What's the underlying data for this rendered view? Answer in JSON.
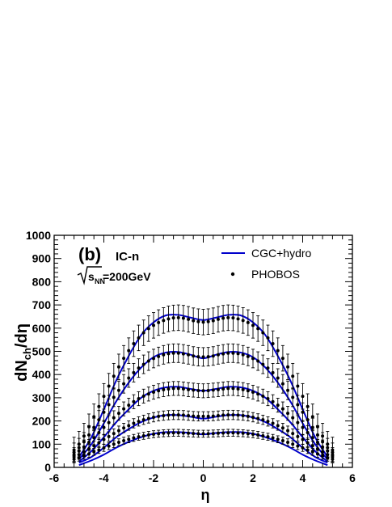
{
  "chart_data": {
    "type": "line",
    "panel_label": "(b)",
    "model_label": "IC-n",
    "energy_label": {
      "root": "s",
      "sub": "NN",
      "value": "=200GeV"
    },
    "xlabel": "η",
    "ylabel": {
      "main": "dN",
      "sub": "ch",
      "suffix": "/dη"
    },
    "xlim": [
      -6,
      6
    ],
    "ylim": [
      0,
      1000
    ],
    "xticks": [
      -6,
      -4,
      -2,
      0,
      2,
      4,
      6
    ],
    "yticks": [
      0,
      100,
      200,
      300,
      400,
      500,
      600,
      700,
      800,
      900,
      1000
    ],
    "grid": false,
    "legend": {
      "position": "top-right",
      "entries": [
        {
          "label": "CGC+hydro",
          "kind": "line",
          "color": "#0000cc"
        },
        {
          "label": "PHOBOS",
          "kind": "marker",
          "color": "#000000"
        }
      ]
    },
    "model_curves": [
      {
        "x": [
          -5.0,
          -4.5,
          -4.0,
          -3.5,
          -3.0,
          -2.5,
          -2.0,
          -1.5,
          -1.0,
          -0.5,
          0.0,
          0.5,
          1.0,
          1.5,
          2.0,
          2.5,
          3.0,
          3.5,
          4.0,
          4.5,
          5.0
        ],
        "y": [
          10,
          30,
          55,
          85,
          110,
          130,
          145,
          152,
          152,
          148,
          142,
          148,
          152,
          152,
          145,
          130,
          110,
          85,
          55,
          30,
          10
        ]
      },
      {
        "x": [
          -5.0,
          -4.5,
          -4.0,
          -3.5,
          -3.0,
          -2.5,
          -2.0,
          -1.5,
          -1.0,
          -0.5,
          0.0,
          0.5,
          1.0,
          1.5,
          2.0,
          2.5,
          3.0,
          3.5,
          4.0,
          4.5,
          5.0
        ],
        "y": [
          20,
          45,
          85,
          130,
          165,
          195,
          215,
          225,
          225,
          218,
          210,
          218,
          225,
          225,
          215,
          195,
          165,
          130,
          85,
          45,
          20
        ]
      },
      {
        "x": [
          -5.0,
          -4.5,
          -4.0,
          -3.5,
          -3.0,
          -2.5,
          -2.0,
          -1.5,
          -1.0,
          -0.5,
          0.0,
          0.5,
          1.0,
          1.5,
          2.0,
          2.5,
          3.0,
          3.5,
          4.0,
          4.5,
          5.0
        ],
        "y": [
          25,
          70,
          130,
          195,
          250,
          300,
          330,
          345,
          347,
          338,
          330,
          338,
          347,
          345,
          330,
          300,
          250,
          195,
          130,
          70,
          25
        ]
      },
      {
        "x": [
          -5.0,
          -4.5,
          -4.0,
          -3.5,
          -3.0,
          -2.5,
          -2.0,
          -1.5,
          -1.0,
          -0.5,
          0.0,
          0.5,
          1.0,
          1.5,
          2.0,
          2.5,
          3.0,
          3.5,
          4.0,
          4.5,
          5.0
        ],
        "y": [
          35,
          100,
          190,
          285,
          365,
          430,
          475,
          495,
          497,
          485,
          470,
          485,
          497,
          495,
          475,
          430,
          365,
          285,
          190,
          100,
          35
        ]
      },
      {
        "x": [
          -5.0,
          -4.5,
          -4.0,
          -3.5,
          -3.0,
          -2.5,
          -2.0,
          -1.5,
          -1.0,
          -0.5,
          0.0,
          0.5,
          1.0,
          1.5,
          2.0,
          2.5,
          3.0,
          3.5,
          4.0,
          4.5,
          5.0
        ],
        "y": [
          45,
          130,
          250,
          375,
          480,
          570,
          625,
          655,
          657,
          645,
          635,
          645,
          657,
          655,
          625,
          570,
          480,
          375,
          250,
          130,
          45
        ]
      }
    ],
    "phobos_points": [
      {
        "x": [
          -5.2,
          -5.0,
          -4.8,
          -4.6,
          -4.4,
          -4.2,
          -4.0,
          -3.8,
          -3.6,
          -3.4,
          -3.2,
          -3.0,
          -2.8,
          -2.6,
          -2.4,
          -2.2,
          -2.0,
          -1.8,
          -1.6,
          -1.4,
          -1.2,
          -1.0,
          -0.8,
          -0.6,
          -0.4,
          -0.2,
          0.0,
          0.2,
          0.4,
          0.6,
          0.8,
          1.0,
          1.2,
          1.4,
          1.6,
          1.8,
          2.0,
          2.2,
          2.4,
          2.6,
          2.8,
          3.0,
          3.2,
          3.4,
          3.6,
          3.8,
          4.0,
          4.2,
          4.4,
          4.6,
          4.8,
          5.0,
          5.2
        ],
        "y": [
          35,
          42,
          50,
          58,
          67,
          75,
          84,
          92,
          100,
          108,
          115,
          121,
          127,
          132,
          136,
          140,
          143,
          145,
          147,
          148,
          149,
          149,
          148,
          147,
          146,
          145,
          145,
          145,
          146,
          147,
          148,
          149,
          149,
          148,
          147,
          145,
          143,
          140,
          136,
          132,
          127,
          121,
          115,
          108,
          100,
          92,
          84,
          75,
          67,
          58,
          50,
          42,
          35
        ],
        "err": 15
      },
      {
        "x": [
          -5.2,
          -5.0,
          -4.8,
          -4.6,
          -4.4,
          -4.2,
          -4.0,
          -3.8,
          -3.6,
          -3.4,
          -3.2,
          -3.0,
          -2.8,
          -2.6,
          -2.4,
          -2.2,
          -2.0,
          -1.8,
          -1.6,
          -1.4,
          -1.2,
          -1.0,
          -0.8,
          -0.6,
          -0.4,
          -0.2,
          0.0,
          0.2,
          0.4,
          0.6,
          0.8,
          1.0,
          1.2,
          1.4,
          1.6,
          1.8,
          2.0,
          2.2,
          2.4,
          2.6,
          2.8,
          3.0,
          3.2,
          3.4,
          3.6,
          3.8,
          4.0,
          4.2,
          4.4,
          4.6,
          4.8,
          5.0,
          5.2
        ],
        "y": [
          45,
          55,
          67,
          80,
          93,
          106,
          120,
          133,
          146,
          158,
          170,
          180,
          190,
          198,
          205,
          211,
          216,
          220,
          223,
          225,
          226,
          226,
          225,
          223,
          221,
          220,
          220,
          220,
          221,
          223,
          225,
          226,
          226,
          225,
          223,
          220,
          216,
          211,
          205,
          198,
          190,
          180,
          170,
          158,
          146,
          133,
          120,
          106,
          93,
          80,
          67,
          55,
          45
        ],
        "err": 20
      },
      {
        "x": [
          -5.2,
          -5.0,
          -4.8,
          -4.6,
          -4.4,
          -4.2,
          -4.0,
          -3.8,
          -3.6,
          -3.4,
          -3.2,
          -3.0,
          -2.8,
          -2.6,
          -2.4,
          -2.2,
          -2.0,
          -1.8,
          -1.6,
          -1.4,
          -1.2,
          -1.0,
          -0.8,
          -0.6,
          -0.4,
          -0.2,
          0.0,
          0.2,
          0.4,
          0.6,
          0.8,
          1.0,
          1.2,
          1.4,
          1.6,
          1.8,
          2.0,
          2.2,
          2.4,
          2.6,
          2.8,
          3.0,
          3.2,
          3.4,
          3.6,
          3.8,
          4.0,
          4.2,
          4.4,
          4.6,
          4.8,
          5.0,
          5.2
        ],
        "y": [
          55,
          70,
          88,
          108,
          128,
          150,
          172,
          193,
          214,
          233,
          252,
          268,
          283,
          296,
          307,
          316,
          324,
          330,
          335,
          338,
          340,
          340,
          338,
          335,
          333,
          331,
          330,
          331,
          333,
          335,
          338,
          340,
          340,
          338,
          335,
          330,
          324,
          316,
          307,
          296,
          283,
          268,
          252,
          233,
          214,
          193,
          172,
          150,
          128,
          108,
          88,
          70,
          55
        ],
        "err": 30
      },
      {
        "x": [
          -5.2,
          -5.0,
          -4.8,
          -4.6,
          -4.4,
          -4.2,
          -4.0,
          -3.8,
          -3.6,
          -3.4,
          -3.2,
          -3.0,
          -2.8,
          -2.6,
          -2.4,
          -2.2,
          -2.0,
          -1.8,
          -1.6,
          -1.4,
          -1.2,
          -1.0,
          -0.8,
          -0.6,
          -0.4,
          -0.2,
          0.0,
          0.2,
          0.4,
          0.6,
          0.8,
          1.0,
          1.2,
          1.4,
          1.6,
          1.8,
          2.0,
          2.2,
          2.4,
          2.6,
          2.8,
          3.0,
          3.2,
          3.4,
          3.6,
          3.8,
          4.0,
          4.2,
          4.4,
          4.6,
          4.8,
          5.0,
          5.2
        ],
        "y": [
          65,
          85,
          110,
          140,
          172,
          205,
          238,
          270,
          302,
          332,
          360,
          385,
          408,
          428,
          444,
          458,
          469,
          478,
          485,
          490,
          492,
          492,
          489,
          485,
          480,
          477,
          476,
          477,
          480,
          485,
          489,
          492,
          492,
          490,
          485,
          478,
          469,
          458,
          444,
          428,
          408,
          385,
          360,
          332,
          302,
          270,
          238,
          205,
          172,
          140,
          110,
          85,
          65
        ],
        "err": 40
      },
      {
        "x": [
          -5.2,
          -5.0,
          -4.8,
          -4.6,
          -4.4,
          -4.2,
          -4.0,
          -3.8,
          -3.6,
          -3.4,
          -3.2,
          -3.0,
          -2.8,
          -2.6,
          -2.4,
          -2.2,
          -2.0,
          -1.8,
          -1.6,
          -1.4,
          -1.2,
          -1.0,
          -0.8,
          -0.6,
          -0.4,
          -0.2,
          0.0,
          0.2,
          0.4,
          0.6,
          0.8,
          1.0,
          1.2,
          1.4,
          1.6,
          1.8,
          2.0,
          2.2,
          2.4,
          2.6,
          2.8,
          3.0,
          3.2,
          3.4,
          3.6,
          3.8,
          4.0,
          4.2,
          4.4,
          4.6,
          4.8,
          5.0,
          5.2
        ],
        "y": [
          75,
          100,
          135,
          175,
          218,
          262,
          306,
          350,
          393,
          433,
          470,
          503,
          533,
          558,
          580,
          598,
          612,
          624,
          633,
          640,
          644,
          645,
          643,
          638,
          632,
          628,
          626,
          628,
          632,
          638,
          643,
          645,
          644,
          640,
          633,
          624,
          612,
          598,
          580,
          558,
          533,
          503,
          470,
          433,
          393,
          350,
          306,
          262,
          218,
          175,
          135,
          100,
          75
        ],
        "err": 55
      }
    ]
  }
}
